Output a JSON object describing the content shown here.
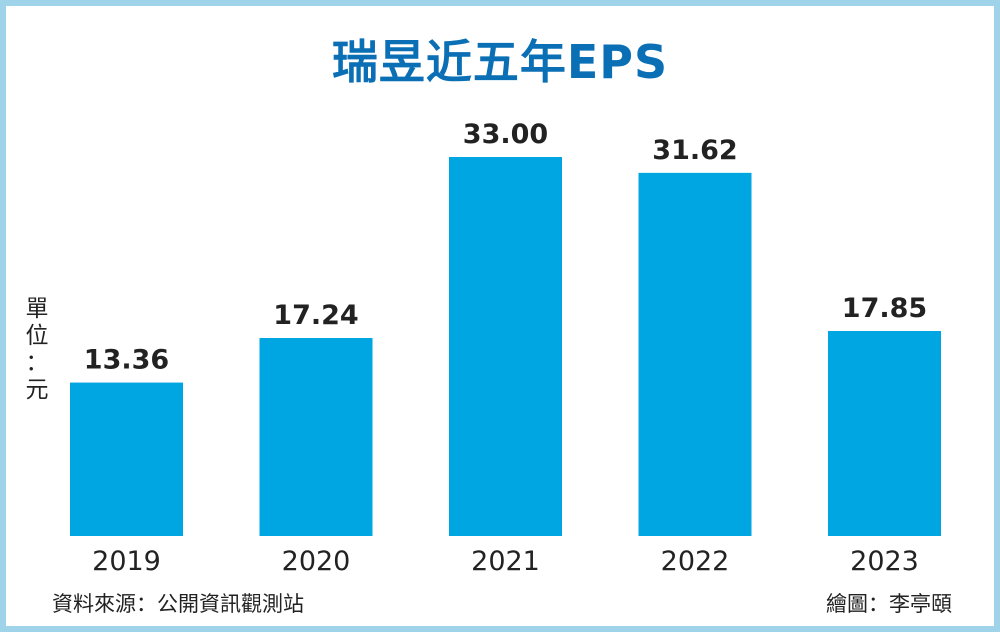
{
  "chart_data": {
    "type": "bar",
    "title": "瑞昱近五年EPS",
    "categories": [
      "2019",
      "2020",
      "2021",
      "2022",
      "2023"
    ],
    "values": [
      13.36,
      17.24,
      33.0,
      31.62,
      17.85
    ],
    "value_labels": [
      "13.36",
      "17.24",
      "33.00",
      "31.62",
      "17.85"
    ],
    "ylabel": "單位：元",
    "ylim": [
      0,
      33
    ],
    "grid": false,
    "legend": "none"
  },
  "footer": {
    "source": "資料來源：公開資訊觀測站",
    "credit": "繪圖：李亭頤"
  },
  "colors": {
    "bar": "#00a6e2",
    "title": "#0a6fb4",
    "frame": "#9fd3ea",
    "text": "#222222"
  }
}
